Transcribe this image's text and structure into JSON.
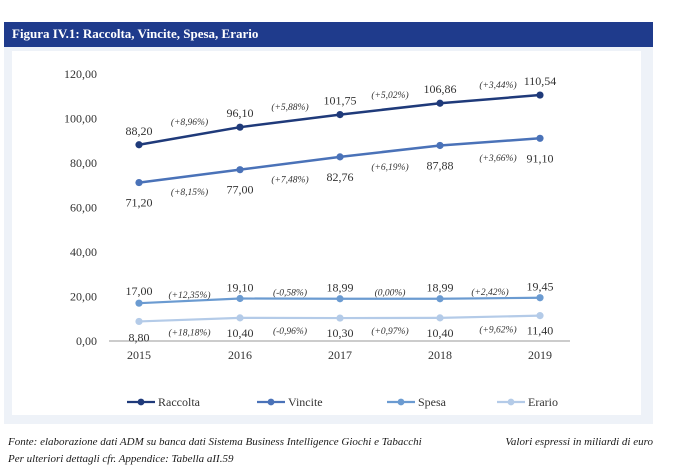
{
  "figure": {
    "title": "Figura IV.1: Raccolta, Vincite, Spesa, Erario"
  },
  "footer": {
    "source": "Fonte: elaborazione dati ADM su banca dati Sistema Business Intelligence Giochi e Tabacchi",
    "note": "Per ulteriori dettagli cfr. Appendice: Tabella aII.59",
    "units": "Valori espressi in miliardi di euro"
  },
  "chart_data": {
    "type": "line",
    "title": "",
    "xlabel": "",
    "ylabel": "",
    "ylim": [
      0,
      120
    ],
    "yticks": [
      "0,00",
      "20,00",
      "40,00",
      "60,00",
      "80,00",
      "100,00",
      "120,00"
    ],
    "ytick_values": [
      0,
      20,
      40,
      60,
      80,
      100,
      120
    ],
    "categories": [
      "2015",
      "2016",
      "2017",
      "2018",
      "2019"
    ],
    "grid": false,
    "legend_position": "bottom",
    "series": [
      {
        "name": "Raccolta",
        "color": "#1f3a7a",
        "values": [
          88.2,
          96.1,
          101.75,
          106.86,
          110.54
        ],
        "labels": [
          "88,20",
          "96,10",
          "101,75",
          "106,86",
          "110,54"
        ],
        "changes": [
          "(+8,96%)",
          "(+5,88%)",
          "(+5,02%)",
          "(+3,44%)"
        ]
      },
      {
        "name": "Vincite",
        "color": "#4a72b8",
        "values": [
          71.2,
          77.0,
          82.76,
          87.88,
          91.1
        ],
        "labels": [
          "71,20",
          "77,00",
          "82,76",
          "87,88",
          "91,10"
        ],
        "changes": [
          "(+8,15%)",
          "(+7,48%)",
          "(+6,19%)",
          "(+3,66%)"
        ]
      },
      {
        "name": "Spesa",
        "color": "#6b9bd1",
        "values": [
          17.0,
          19.1,
          18.99,
          18.99,
          19.45
        ],
        "labels": [
          "17,00",
          "19,10",
          "18,99",
          "18,99",
          "19,45"
        ],
        "changes": [
          "(+12,35%)",
          "(-0,58%)",
          "(0,00%)",
          "(+2,42%)"
        ]
      },
      {
        "name": "Erario",
        "color": "#b4cbe8",
        "values": [
          8.8,
          10.4,
          10.3,
          10.4,
          11.4
        ],
        "labels": [
          "8,80",
          "10,40",
          "10,30",
          "10,40",
          "11,40"
        ],
        "changes": [
          "(+18,18%)",
          "(-0,96%)",
          "(+0,97%)",
          "(+9,62%)"
        ]
      }
    ]
  }
}
